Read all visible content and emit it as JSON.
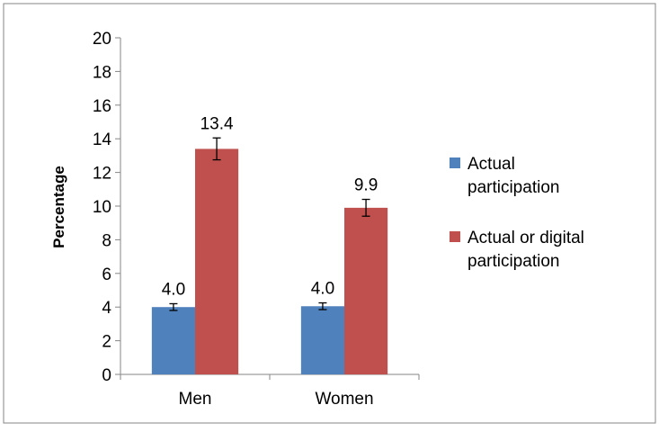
{
  "chart_data": {
    "type": "bar",
    "categories": [
      "Men",
      "Women"
    ],
    "series": [
      {
        "name": "Actual participation",
        "legend_lines": [
          "Actual",
          "participation"
        ],
        "color": "#4f81bd",
        "values": [
          4.0,
          4.05
        ],
        "error": [
          0.2,
          0.2
        ],
        "labels": [
          "4.0",
          "4.0"
        ]
      },
      {
        "name": "Actual or digital participation",
        "legend_lines": [
          "Actual or digital",
          "participation"
        ],
        "color": "#c0504d",
        "values": [
          13.4,
          9.9
        ],
        "error": [
          0.65,
          0.5
        ],
        "labels": [
          "13.4",
          "9.9"
        ]
      }
    ],
    "title": "",
    "xlabel": "",
    "ylabel": "Percentage",
    "ylim": [
      0,
      20
    ],
    "yticks": [
      "0",
      "2",
      "4",
      "6",
      "8",
      "10",
      "12",
      "14",
      "16",
      "18",
      "20"
    ],
    "grid": false,
    "legend_position": "right"
  }
}
